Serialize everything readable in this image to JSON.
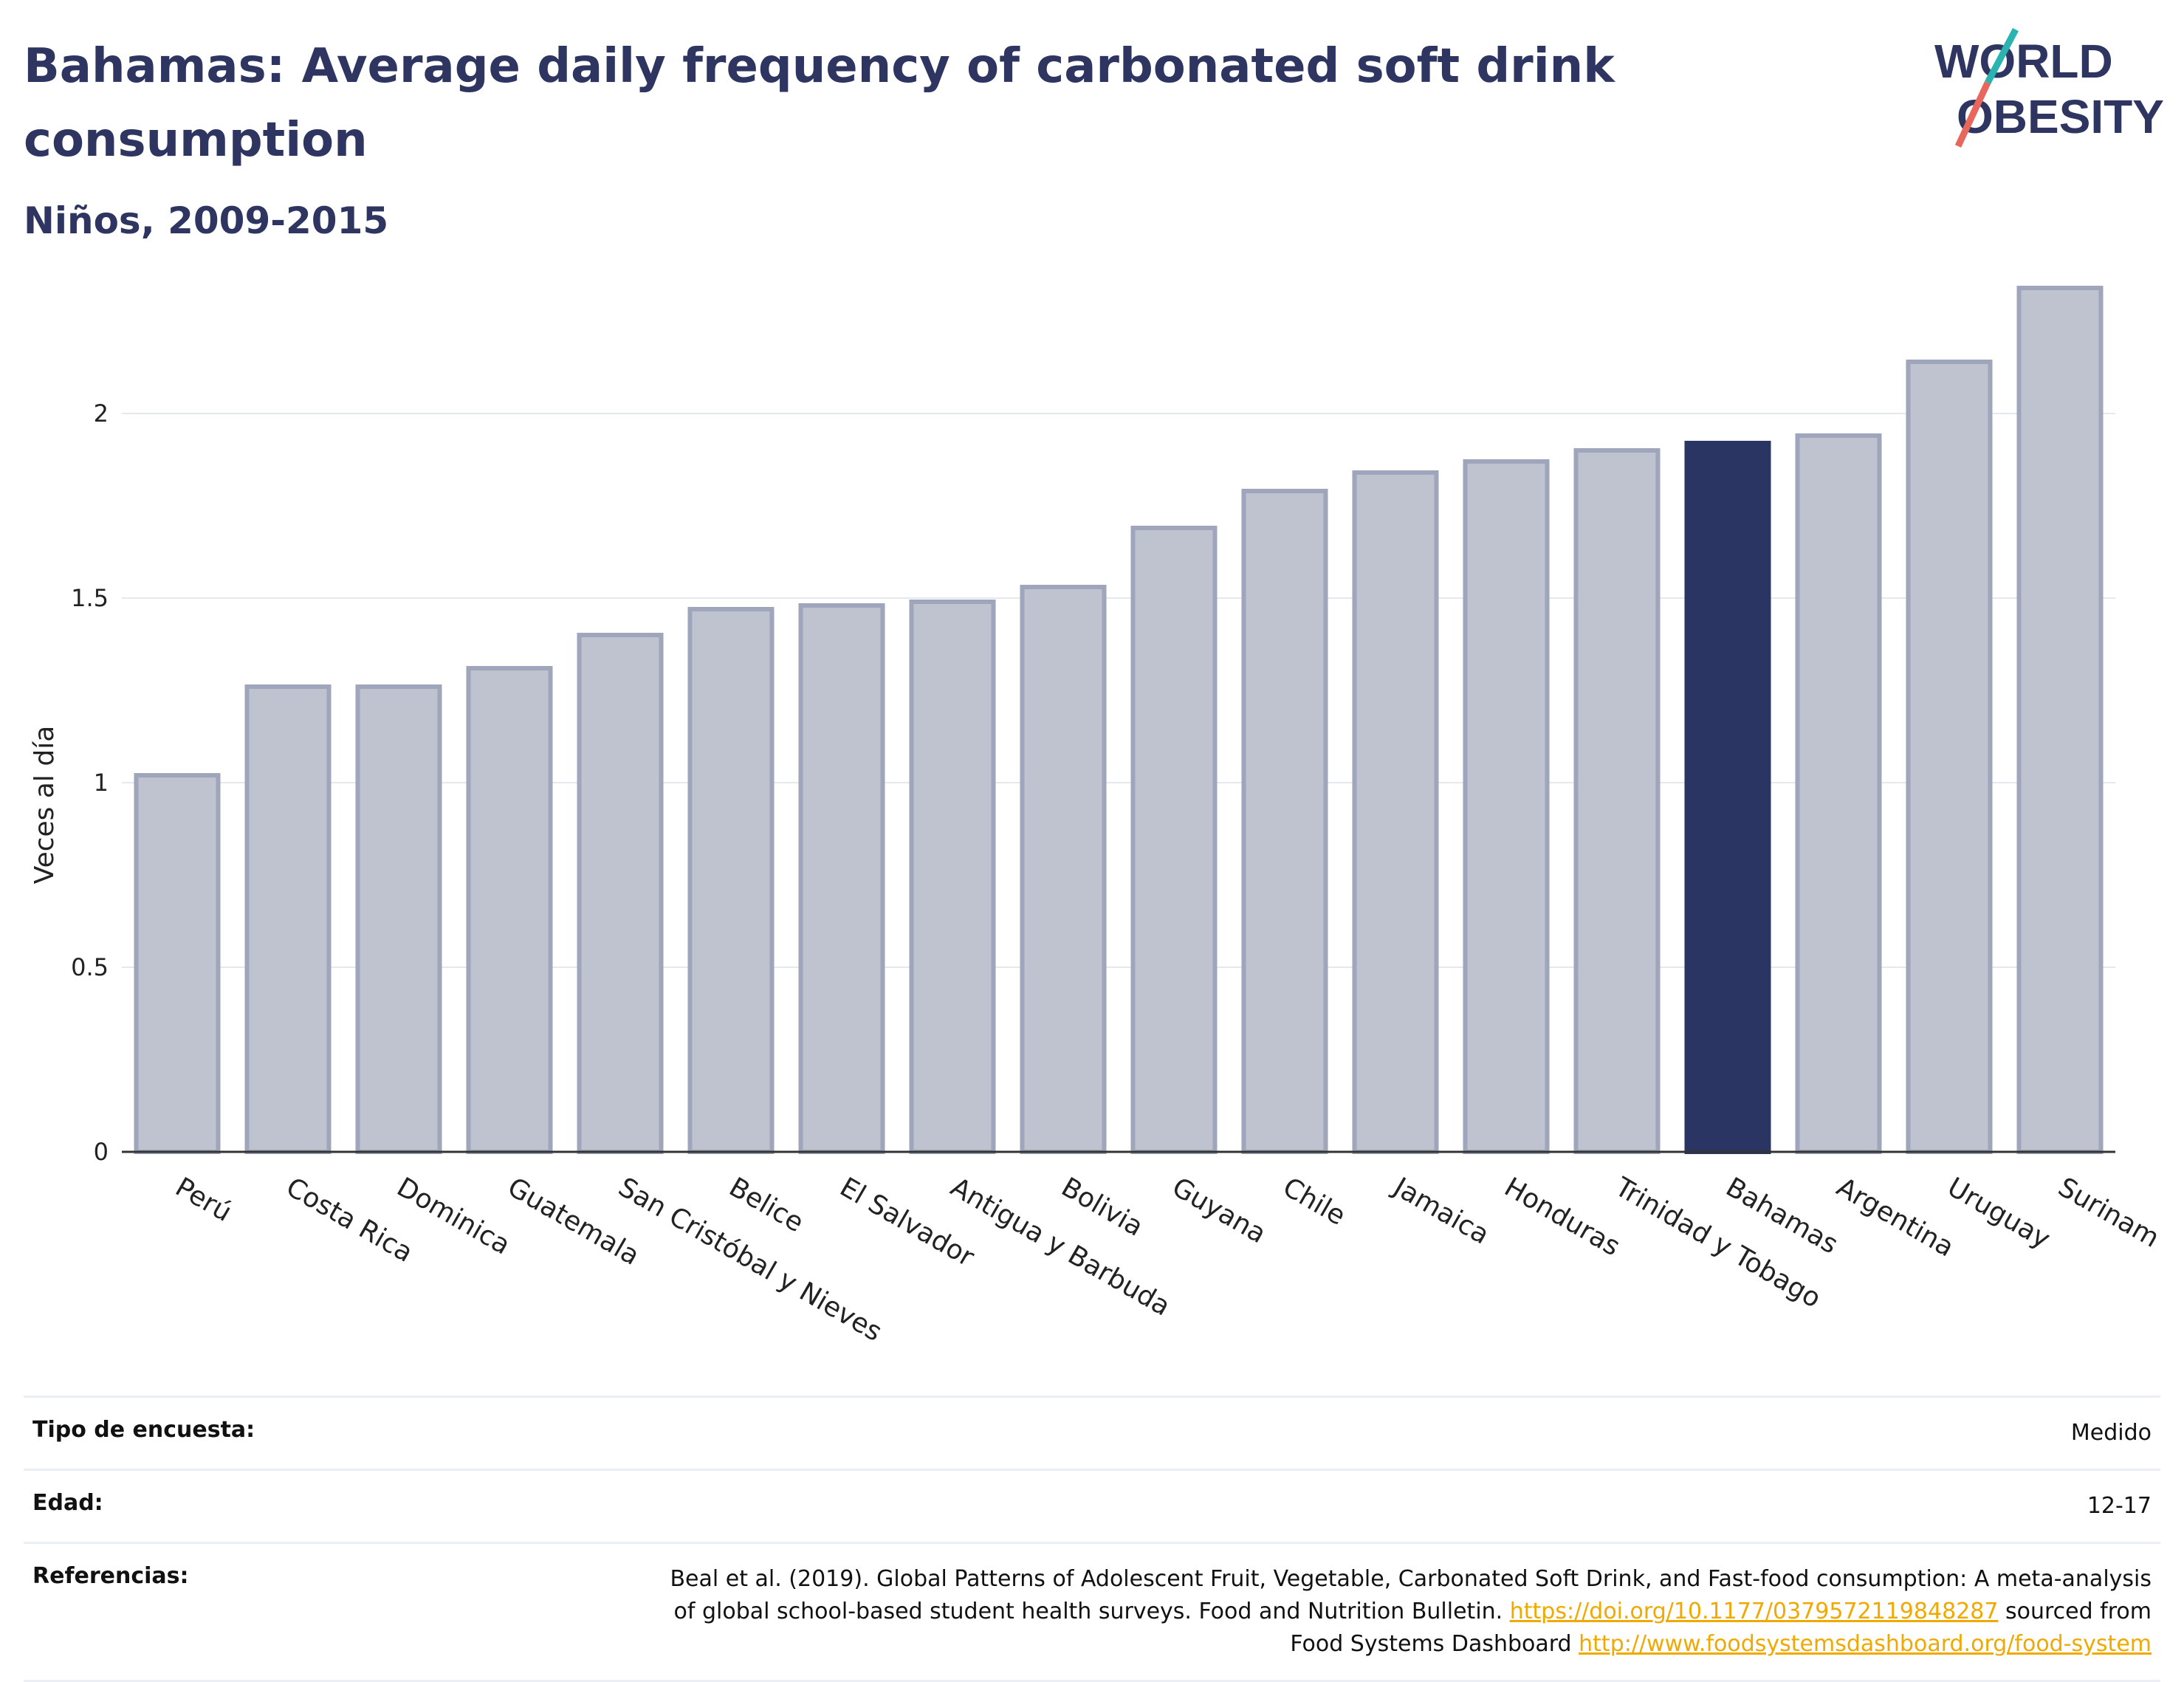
{
  "title": "Bahamas: Average daily frequency of carbonated soft drink consumption",
  "subtitle": "Niños, 2009-2015",
  "logo": {
    "line1": "WORLD",
    "line2": "OBESITY",
    "colors": {
      "text": "#2d3560",
      "slash_red": "#e8675c",
      "slash_teal": "#2bb3b1"
    }
  },
  "chart_data": {
    "type": "bar",
    "categories": [
      "Perú",
      "Costa Rica",
      "Dominica",
      "Guatemala",
      "San Cristóbal y Nieves",
      "Belice",
      "El Salvador",
      "Antigua y Barbuda",
      "Bolivia",
      "Guyana",
      "Chile",
      "Jamaica",
      "Honduras",
      "Trinidad y Tobago",
      "Bahamas",
      "Argentina",
      "Uruguay",
      "Surinam"
    ],
    "values": [
      1.02,
      1.26,
      1.26,
      1.31,
      1.4,
      1.47,
      1.48,
      1.49,
      1.53,
      1.69,
      1.79,
      1.84,
      1.87,
      1.9,
      1.92,
      1.94,
      2.14,
      2.34
    ],
    "highlight": "Bahamas",
    "ylabel": "Veces al día",
    "xlabel": "",
    "ylim": [
      0,
      2.4
    ],
    "yticks": [
      0,
      0.5,
      1,
      1.5,
      2
    ],
    "ytick_labels": [
      "0",
      "0.5",
      "1",
      "1.5",
      "2"
    ],
    "grid": true,
    "colors": {
      "bar": "#bfc3d0",
      "bar_border": "#9fa5ba",
      "highlight": "#2a3563",
      "grid": "#e6e8ef",
      "axis": "#333333"
    }
  },
  "info": {
    "survey_type": {
      "label": "Tipo de encuesta:",
      "value": "Medido"
    },
    "age": {
      "label": "Edad:",
      "value": "12-17"
    },
    "references": {
      "label": "Referencias:",
      "text1": "Beal et al. (2019). Global Patterns of Adolescent Fruit, Vegetable, Carbonated Soft Drink, and Fast-food consumption: A meta-analysis",
      "text2": "of global school-based student health surveys. Food and Nutrition Bulletin.",
      "link1": "https://doi.org/10.1177/0379572119848287",
      "text3": "sourced from",
      "text4": "Food Systems Dashboard",
      "link2": "http://www.foodsystemsdashboard.org/food-system"
    }
  }
}
